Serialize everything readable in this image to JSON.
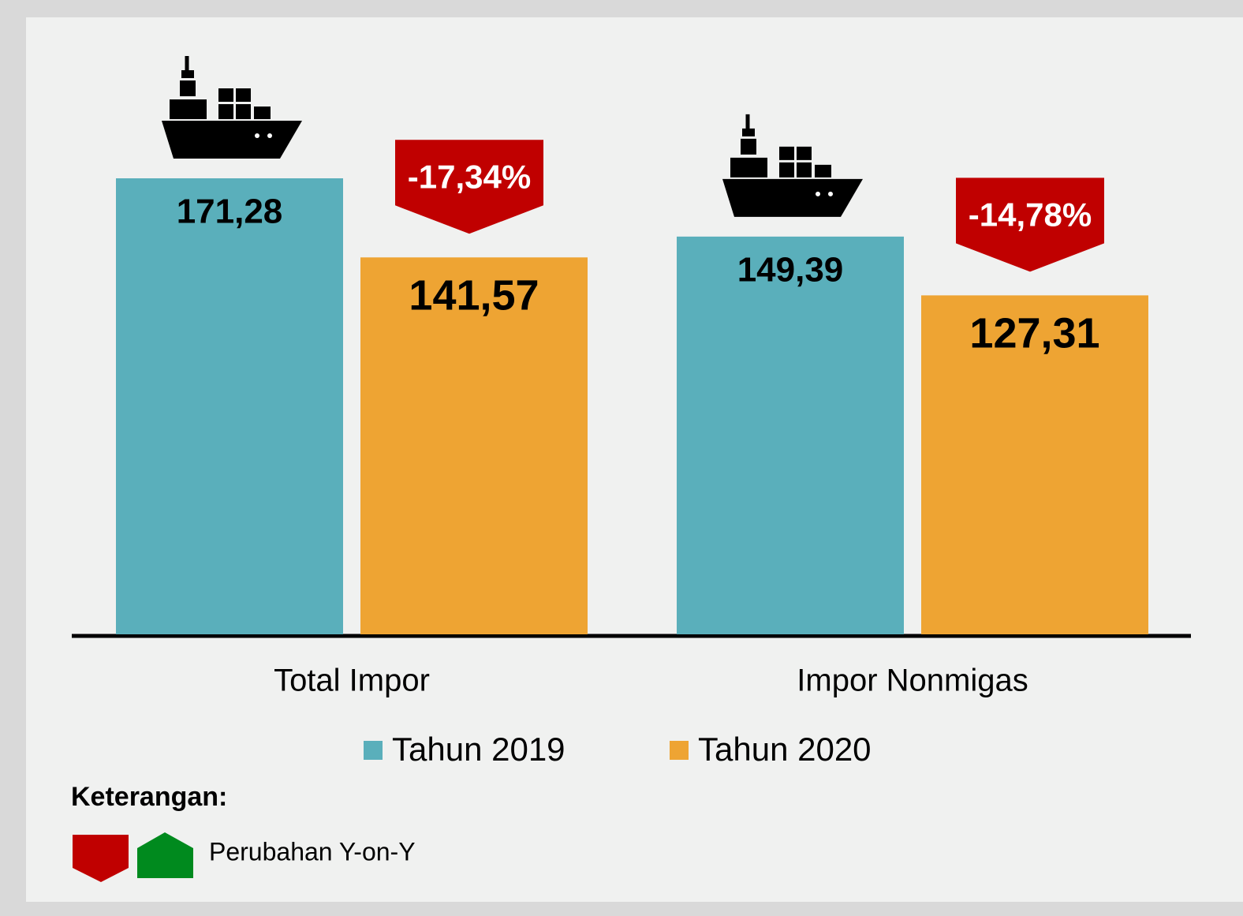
{
  "chart_data": {
    "type": "bar",
    "categories": [
      "Total Impor",
      "Impor Nonmigas"
    ],
    "series": [
      {
        "name": "Tahun 2019",
        "color": "#5aafbb",
        "values": [
          171.28,
          149.39
        ],
        "value_labels": [
          "171,28",
          "149,39"
        ]
      },
      {
        "name": "Tahun 2020",
        "color": "#eea433",
        "values": [
          141.57,
          127.31
        ],
        "value_labels": [
          "141,57",
          "127,31"
        ]
      }
    ],
    "change_values": [
      -17.34,
      -14.78
    ],
    "change_labels": [
      "-17,34%",
      "-14,78%"
    ],
    "change_color": "#c00000",
    "note_title": "Keterangan:",
    "note_text": "Perubahan Y-on-Y"
  }
}
